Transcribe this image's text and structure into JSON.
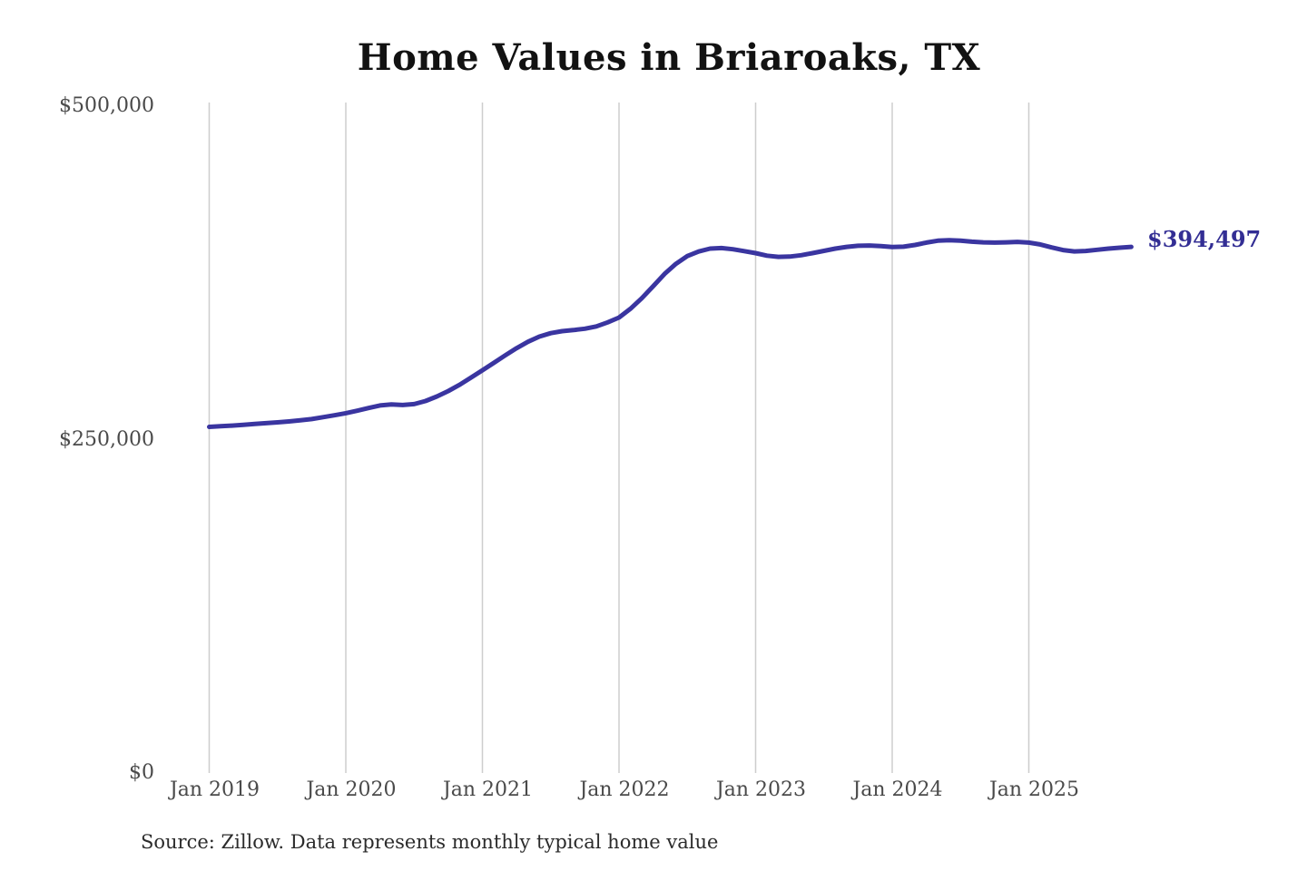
{
  "title": "Home Values in Briaroaks, TX",
  "source_note": "Source: Zillow. Data represents monthly typical home value",
  "colors": {
    "line": "#3a35a0",
    "gridline": "#cdcdcd",
    "title_text": "#121212",
    "tick_text": "#4a4a4a",
    "end_label_text": "#332e94",
    "background": "#ffffff"
  },
  "chart_data": {
    "type": "line",
    "title": "Home Values in Briaroaks, TX",
    "series_name": "Monthly typical home value",
    "x_start": "Jan 2019",
    "x_end": "Oct 2025",
    "x_tick_labels": [
      "Jan 2019",
      "Jan 2020",
      "Jan 2021",
      "Jan 2022",
      "Jan 2023",
      "Jan 2024",
      "Jan 2025"
    ],
    "y_tick_labels": [
      "$0",
      "$250,000",
      "$500,000"
    ],
    "y_ticks": [
      0,
      250000,
      500000
    ],
    "ylim": [
      0,
      500000
    ],
    "grid": "vertical",
    "legend": "none",
    "end_label": "$394,497",
    "end_value": 394497,
    "values_monthly": [
      259500,
      260000,
      260500,
      261100,
      261700,
      262300,
      262900,
      263600,
      264400,
      265400,
      266800,
      268200,
      269800,
      271600,
      273700,
      275600,
      276300,
      275900,
      276600,
      278900,
      282300,
      286400,
      291100,
      296500,
      302000,
      307500,
      313100,
      318500,
      323300,
      327200,
      329800,
      331300,
      332100,
      333100,
      334800,
      337900,
      341500,
      348000,
      356000,
      365000,
      374200,
      381800,
      387600,
      391000,
      393200,
      393600,
      392700,
      391300,
      389800,
      387900,
      387000,
      387200,
      388200,
      389800,
      391500,
      393200,
      394500,
      395300,
      395500,
      395100,
      394400,
      394600,
      395900,
      397700,
      399100,
      399500,
      399100,
      398400,
      397900,
      397700,
      397900,
      398200,
      397700,
      396300,
      394100,
      392100,
      391100,
      391400,
      392300,
      393200,
      393900,
      394497
    ]
  }
}
